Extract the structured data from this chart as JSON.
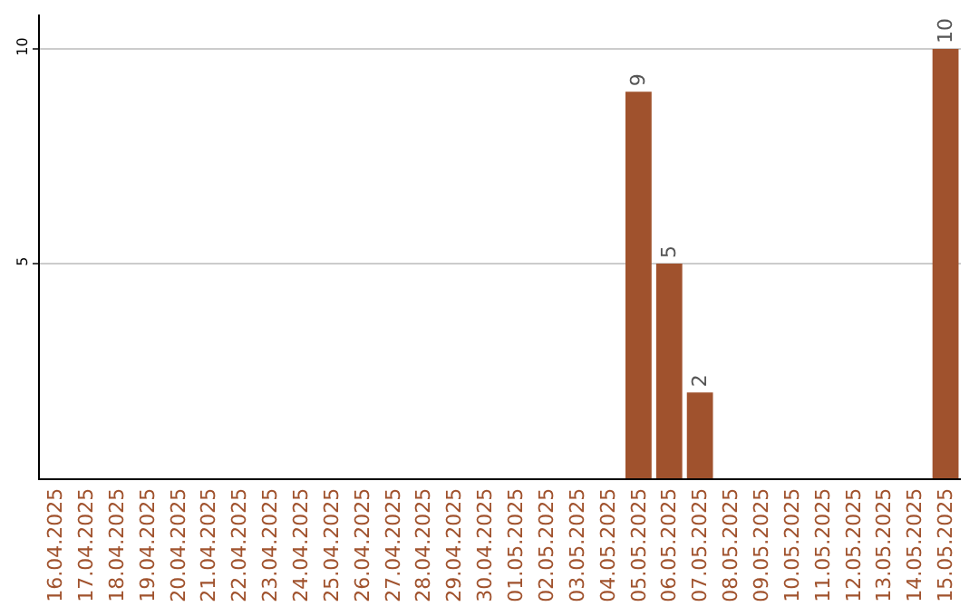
{
  "chart_data": {
    "type": "bar",
    "categories": [
      "16.04.2025",
      "17.04.2025",
      "18.04.2025",
      "19.04.2025",
      "20.04.2025",
      "21.04.2025",
      "22.04.2025",
      "23.04.2025",
      "24.04.2025",
      "25.04.2025",
      "26.04.2025",
      "27.04.2025",
      "28.04.2025",
      "29.04.2025",
      "30.04.2025",
      "01.05.2025",
      "02.05.2025",
      "03.05.2025",
      "04.05.2025",
      "05.05.2025",
      "06.05.2025",
      "07.05.2025",
      "08.05.2025",
      "09.05.2025",
      "10.05.2025",
      "11.05.2025",
      "12.05.2025",
      "13.05.2025",
      "14.05.2025",
      "15.05.2025"
    ],
    "values": [
      0,
      0,
      0,
      0,
      0,
      0,
      0,
      0,
      0,
      0,
      0,
      0,
      0,
      0,
      0,
      0,
      0,
      0,
      0,
      9,
      5,
      2,
      0,
      0,
      0,
      0,
      0,
      0,
      0,
      10
    ],
    "value_labels": [
      null,
      null,
      null,
      null,
      null,
      null,
      null,
      null,
      null,
      null,
      null,
      null,
      null,
      null,
      null,
      null,
      null,
      null,
      null,
      "9",
      "5",
      "2",
      null,
      null,
      null,
      null,
      null,
      null,
      null,
      "10"
    ],
    "color": "#a0522d",
    "ylim": [
      0,
      10.8
    ],
    "yticks": [
      5,
      10
    ],
    "grid": "y"
  }
}
